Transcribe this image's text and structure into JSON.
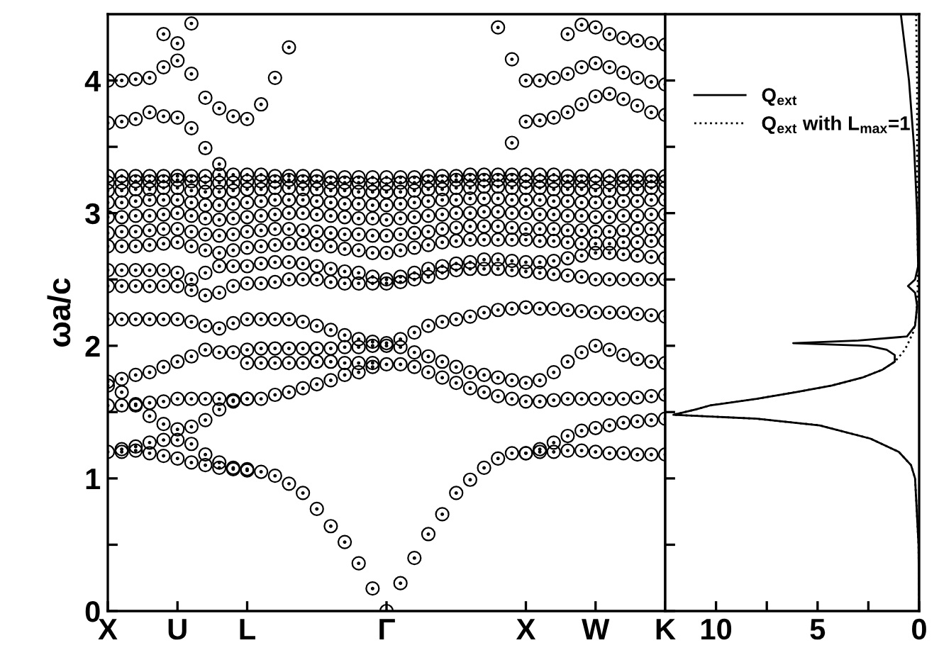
{
  "chart_data": [
    {
      "type": "scatter",
      "ylabel": "ωa/c",
      "marker": "circle",
      "grid": false,
      "categories": [
        "X",
        null,
        null,
        null,
        null,
        "U",
        null,
        null,
        null,
        null,
        "L",
        null,
        null,
        null,
        null,
        null,
        null,
        null,
        null,
        null,
        "Γ",
        null,
        null,
        null,
        null,
        null,
        null,
        null,
        null,
        null,
        "X",
        null,
        null,
        null,
        null,
        "W",
        null,
        null,
        null,
        null,
        "K"
      ],
      "ylim": [
        0,
        4.5
      ],
      "yticks": [
        0,
        {
          "value": 0.5,
          "label": null
        },
        1,
        {
          "value": 1.5,
          "label": null
        },
        2,
        {
          "value": 2.5,
          "label": null
        },
        3,
        {
          "value": 3.5,
          "label": null
        },
        4
      ],
      "series": [
        {
          "color": "#000000",
          "values": [
            1.2,
            1.2,
            1.21,
            1.19,
            1.17,
            1.15,
            1.12,
            1.1,
            1.08,
            1.07,
            1.06,
            1.05,
            1.02,
            0.96,
            0.89,
            0.77,
            0.64,
            0.52,
            0.36,
            0.17,
            0,
            0.21,
            0.4,
            0.58,
            0.73,
            0.89,
            0.99,
            1.08,
            1.15,
            1.19,
            1.19,
            1.2,
            1.2,
            1.21,
            1.21,
            1.2,
            1.19,
            1.19,
            1.18,
            1.18,
            1.18
          ]
        },
        {
          "color": "#000000",
          "values": [
            null,
            1.22,
            1.24,
            1.27,
            1.29,
            1.29,
            1.26,
            1.18,
            1.12,
            1.08,
            1.07,
            null,
            null,
            null,
            null,
            null,
            null,
            null,
            null,
            null,
            null,
            null,
            null,
            null,
            null,
            null,
            null,
            null,
            null,
            null,
            1.19,
            1.22,
            1.27,
            1.32,
            1.36,
            1.38,
            1.4,
            1.42,
            1.43,
            1.44,
            1.45
          ]
        },
        {
          "color": "#000000",
          "values": [
            1.55,
            1.55,
            1.56,
            1.57,
            1.58,
            1.6,
            1.6,
            1.6,
            1.6,
            1.59,
            1.6,
            1.6,
            1.63,
            1.65,
            1.68,
            1.71,
            1.74,
            1.78,
            1.8,
            1.84,
            1.86,
            1.86,
            1.84,
            1.8,
            1.76,
            1.72,
            1.68,
            1.65,
            1.62,
            1.6,
            1.58,
            1.58,
            1.59,
            1.6,
            1.6,
            1.6,
            1.6,
            1.6,
            1.61,
            1.62,
            1.63
          ]
        },
        {
          "color": "#000000",
          "values": [
            1.7,
            1.65,
            1.55,
            1.47,
            1.41,
            1.37,
            1.39,
            1.44,
            1.52,
            1.58,
            1.6,
            null,
            null,
            null,
            null,
            null,
            null,
            null,
            null,
            null,
            null,
            null,
            null,
            null,
            null,
            null,
            null,
            null,
            null,
            null,
            null,
            null,
            null,
            null,
            null,
            null,
            null,
            null,
            null,
            null,
            null
          ]
        },
        {
          "color": "#000000",
          "values": [
            1.73,
            1.75,
            1.78,
            1.8,
            1.84,
            1.88,
            1.92,
            1.97,
            1.95,
            1.95,
            1.97,
            1.98,
            1.98,
            1.98,
            1.98,
            1.98,
            1.98,
            1.99,
            1.99,
            2.0,
            2.0,
            1.99,
            1.95,
            1.92,
            1.88,
            1.84,
            1.8,
            1.78,
            1.76,
            1.74,
            1.72,
            1.74,
            1.8,
            1.88,
            1.95,
            2.0,
            1.97,
            1.93,
            1.9,
            1.88,
            1.87
          ]
        },
        {
          "color": "#000000",
          "values": [
            null,
            null,
            null,
            null,
            null,
            null,
            null,
            null,
            null,
            null,
            1.87,
            1.87,
            1.87,
            1.87,
            1.87,
            1.88,
            1.88,
            1.87,
            1.87,
            1.87,
            null,
            null,
            null,
            null,
            null,
            null,
            null,
            null,
            null,
            null,
            null,
            null,
            null,
            null,
            null,
            null,
            null,
            null,
            null,
            null,
            null
          ]
        },
        {
          "color": "#000000",
          "values": [
            2.2,
            2.2,
            2.2,
            2.2,
            2.2,
            2.2,
            2.18,
            2.15,
            2.13,
            2.17,
            2.2,
            2.2,
            2.2,
            2.2,
            2.18,
            2.15,
            2.12,
            2.08,
            2.05,
            2.03,
            2.02,
            2.05,
            2.1,
            2.15,
            2.18,
            2.2,
            2.22,
            2.25,
            2.27,
            2.28,
            2.29,
            2.28,
            2.28,
            2.27,
            2.26,
            2.25,
            2.25,
            2.25,
            2.24,
            2.23,
            2.22
          ]
        },
        {
          "color": "#000000",
          "values": [
            2.45,
            2.45,
            2.45,
            2.45,
            2.45,
            2.45,
            2.42,
            2.38,
            2.4,
            2.45,
            2.47,
            2.47,
            2.48,
            2.5,
            2.5,
            2.5,
            2.48,
            2.47,
            2.47,
            2.47,
            2.47,
            2.48,
            2.5,
            2.52,
            2.55,
            2.57,
            2.58,
            2.58,
            2.58,
            2.57,
            2.56,
            2.55,
            2.54,
            2.53,
            2.52,
            2.5,
            2.5,
            2.5,
            2.5,
            2.5,
            2.5
          ]
        },
        {
          "color": "#000000",
          "values": [
            2.57,
            2.57,
            2.57,
            2.57,
            2.57,
            2.55,
            2.5,
            2.55,
            2.6,
            2.6,
            2.6,
            2.62,
            2.63,
            2.63,
            2.62,
            2.6,
            2.58,
            2.56,
            2.55,
            2.52,
            2.5,
            2.52,
            2.55,
            2.58,
            2.6,
            2.62,
            2.63,
            2.65,
            2.65,
            2.64,
            2.63,
            2.63,
            2.64,
            2.66,
            2.68,
            2.7,
            2.7,
            2.69,
            2.68,
            2.67,
            2.66
          ]
        },
        {
          "color": "#000000",
          "values": [
            2.75,
            2.75,
            2.75,
            2.76,
            2.77,
            2.78,
            2.75,
            2.72,
            2.7,
            2.72,
            2.74,
            2.75,
            2.76,
            2.77,
            2.77,
            2.76,
            2.75,
            2.73,
            2.72,
            2.7,
            2.7,
            2.72,
            2.74,
            2.76,
            2.78,
            2.79,
            2.8,
            2.8,
            2.8,
            2.8,
            2.8,
            2.79,
            2.79,
            2.78,
            2.77,
            2.77,
            2.77,
            2.78,
            2.78,
            2.79,
            2.79
          ]
        },
        {
          "color": "#000000",
          "values": [
            2.85,
            2.86,
            2.86,
            2.87,
            2.88,
            2.88,
            2.86,
            2.84,
            2.83,
            2.84,
            2.86,
            2.87,
            2.88,
            2.88,
            2.87,
            2.86,
            2.85,
            2.84,
            2.84,
            2.83,
            2.83,
            2.84,
            2.85,
            2.86,
            2.88,
            2.89,
            2.9,
            2.9,
            2.9,
            2.89,
            2.88,
            2.88,
            2.88,
            2.87,
            2.87,
            2.86,
            2.86,
            2.87,
            2.88,
            2.88,
            2.88
          ]
        },
        {
          "color": "#000000",
          "values": [
            2.97,
            2.97,
            2.98,
            2.98,
            2.99,
            3.0,
            2.98,
            2.96,
            2.95,
            2.96,
            2.97,
            2.98,
            2.99,
            3.0,
            3.0,
            2.99,
            2.98,
            2.97,
            2.96,
            2.96,
            2.95,
            2.96,
            2.97,
            2.98,
            2.99,
            3.0,
            3.0,
            3.01,
            3.01,
            3.0,
            3.0,
            2.99,
            2.99,
            2.98,
            2.98,
            2.97,
            2.97,
            2.98,
            2.98,
            2.99,
            2.99
          ]
        },
        {
          "color": "#000000",
          "values": [
            3.08,
            3.08,
            3.09,
            3.1,
            3.1,
            3.1,
            3.08,
            3.06,
            3.06,
            3.07,
            3.08,
            3.09,
            3.1,
            3.1,
            3.1,
            3.09,
            3.08,
            3.07,
            3.07,
            3.06,
            3.06,
            3.07,
            3.08,
            3.09,
            3.1,
            3.1,
            3.11,
            3.11,
            3.11,
            3.1,
            3.1,
            3.1,
            3.09,
            3.09,
            3.08,
            3.08,
            3.08,
            3.09,
            3.09,
            3.1,
            3.1
          ]
        },
        {
          "color": "#000000",
          "values": [
            3.17,
            3.17,
            3.18,
            3.18,
            3.19,
            3.19,
            3.17,
            3.16,
            3.16,
            3.17,
            3.18,
            3.18,
            3.19,
            3.19,
            3.18,
            3.18,
            3.17,
            3.17,
            3.16,
            3.16,
            3.16,
            3.16,
            3.17,
            3.18,
            3.18,
            3.19,
            3.19,
            3.2,
            3.2,
            3.19,
            3.19,
            3.19,
            3.18,
            3.18,
            3.18,
            3.17,
            3.17,
            3.18,
            3.18,
            3.19,
            3.19
          ]
        },
        {
          "color": "#000000",
          "values": [
            3.23,
            3.23,
            3.24,
            3.24,
            3.24,
            3.25,
            3.24,
            3.23,
            3.23,
            3.23,
            3.24,
            3.24,
            3.24,
            3.25,
            3.24,
            3.24,
            3.23,
            3.23,
            3.23,
            3.22,
            3.22,
            3.23,
            3.23,
            3.24,
            3.24,
            3.25,
            3.25,
            3.25,
            3.25,
            3.25,
            3.24,
            3.24,
            3.24,
            3.24,
            3.24,
            3.23,
            3.23,
            3.24,
            3.24,
            3.24,
            3.24
          ]
        },
        {
          "color": "#000000",
          "values": [
            3.28,
            3.28,
            3.28,
            3.28,
            3.28,
            3.28,
            3.28,
            3.28,
            3.29,
            3.29,
            3.29,
            3.29,
            3.28,
            3.28,
            3.28,
            3.28,
            3.27,
            3.27,
            3.27,
            3.27,
            3.27,
            3.27,
            3.27,
            3.28,
            3.28,
            3.28,
            3.29,
            3.29,
            3.29,
            3.29,
            3.29,
            3.29,
            3.29,
            3.28,
            3.28,
            3.28,
            3.28,
            3.28,
            3.28,
            3.28,
            3.28
          ]
        },
        {
          "color": "#000000",
          "values": [
            3.68,
            3.69,
            3.71,
            3.76,
            3.73,
            3.72,
            3.64,
            3.49,
            3.37,
            null,
            null,
            null,
            null,
            null,
            null,
            null,
            null,
            null,
            null,
            null,
            null,
            null,
            null,
            null,
            null,
            null,
            null,
            null,
            null,
            null,
            null,
            null,
            null,
            null,
            null,
            null,
            null,
            null,
            null,
            null,
            null
          ]
        },
        {
          "color": "#000000",
          "values": [
            4.0,
            4.0,
            4.01,
            4.02,
            4.1,
            4.15,
            4.05,
            3.87,
            3.79,
            3.73,
            3.71,
            3.82,
            4.02,
            4.25,
            null,
            null,
            null,
            null,
            null,
            null,
            null,
            null,
            null,
            null,
            null,
            null,
            null,
            null,
            null,
            null,
            null,
            null,
            null,
            null,
            null,
            null,
            null,
            null,
            null,
            null,
            null
          ]
        },
        {
          "color": "#000000",
          "values": [
            null,
            null,
            null,
            null,
            4.35,
            4.28,
            4.43,
            null,
            null,
            null,
            null,
            null,
            null,
            null,
            null,
            null,
            null,
            null,
            null,
            null,
            null,
            null,
            null,
            null,
            null,
            null,
            null,
            null,
            null,
            null,
            null,
            null,
            null,
            null,
            null,
            null,
            null,
            null,
            null,
            null,
            null
          ]
        },
        {
          "color": "#000000",
          "values": [
            null,
            null,
            null,
            null,
            null,
            null,
            null,
            null,
            null,
            null,
            null,
            null,
            null,
            null,
            null,
            null,
            null,
            null,
            null,
            null,
            null,
            null,
            null,
            null,
            null,
            null,
            null,
            null,
            null,
            3.53,
            3.69,
            3.7,
            3.72,
            3.76,
            3.82,
            3.88,
            3.9,
            3.86,
            3.81,
            3.76,
            3.74
          ]
        },
        {
          "color": "#000000",
          "values": [
            null,
            null,
            null,
            null,
            null,
            null,
            null,
            null,
            null,
            null,
            null,
            null,
            null,
            null,
            null,
            null,
            null,
            null,
            null,
            null,
            null,
            null,
            null,
            null,
            null,
            null,
            null,
            null,
            4.4,
            4.16,
            4.0,
            4.0,
            4.02,
            4.05,
            4.1,
            4.13,
            4.1,
            4.06,
            4.02,
            3.99,
            3.97
          ]
        },
        {
          "color": "#000000",
          "values": [
            null,
            null,
            null,
            null,
            null,
            null,
            null,
            null,
            null,
            null,
            null,
            null,
            null,
            null,
            null,
            null,
            null,
            null,
            null,
            null,
            null,
            null,
            null,
            null,
            null,
            null,
            null,
            null,
            null,
            null,
            null,
            null,
            null,
            4.35,
            4.42,
            4.4,
            4.35,
            4.32,
            4.3,
            4.28,
            4.27
          ]
        }
      ]
    },
    {
      "type": "line",
      "xlim": [
        12.5,
        0
      ],
      "xticks": [
        10,
        {
          "value": 7.5,
          "label": null
        },
        5,
        {
          "value": 2.5,
          "label": null
        },
        0
      ],
      "ylim": [
        0,
        4.5
      ],
      "yticks": [
        0,
        {
          "value": 0.5,
          "label": null
        },
        1,
        {
          "value": 1.5,
          "label": null
        },
        2,
        {
          "value": 2.5,
          "label": null
        },
        3,
        {
          "value": 3.5,
          "label": null
        },
        4
      ],
      "tick_labels": "x",
      "legend": "top right",
      "grid": false,
      "series": [
        {
          "name": "Q$_{ext}$",
          "color": "#000000",
          "line_style": "solid",
          "x": [
            0,
            0.03,
            0.2,
            0.4,
            1.0,
            2.4,
            4.9,
            8,
            12.1,
            11,
            10.3,
            8,
            6.1,
            4.3,
            2.8,
            1.8,
            1.2,
            1.2,
            1.6,
            2.5,
            6.2,
            3,
            0.6,
            0.2,
            0.1,
            0.2,
            0.55,
            0.2,
            0.05,
            0.1,
            0.25,
            0.5,
            0.9
          ],
          "values": [
            0,
            0.5,
            1.0,
            1.1,
            1.2,
            1.3,
            1.4,
            1.45,
            1.48,
            1.52,
            1.55,
            1.6,
            1.65,
            1.7,
            1.76,
            1.82,
            1.88,
            1.93,
            1.97,
            2.0,
            2.02,
            2.04,
            2.07,
            2.15,
            2.3,
            2.4,
            2.45,
            2.5,
            2.6,
            3.0,
            3.5,
            4.0,
            4.5
          ]
        },
        {
          "name": "Q$_{ext}$ with L$_{max}$=1",
          "color": "#000000",
          "line_style": "dotted",
          "x": [
            0,
            0.03,
            0.2,
            0.4,
            1.0,
            2.4,
            4.9,
            8,
            12.1,
            11,
            10.3,
            8,
            6.1,
            4.3,
            2.8,
            1.8,
            1.2,
            0.8,
            0.6,
            0.3,
            0.15,
            0.08,
            0.05,
            0.1,
            0.1,
            0.15
          ],
          "values": [
            0,
            0.5,
            1.0,
            1.1,
            1.2,
            1.3,
            1.4,
            1.45,
            1.48,
            1.52,
            1.55,
            1.6,
            1.65,
            1.7,
            1.76,
            1.82,
            1.88,
            1.95,
            2.0,
            2.1,
            2.2,
            2.4,
            2.6,
            3.0,
            4.0,
            4.5
          ]
        }
      ]
    }
  ]
}
